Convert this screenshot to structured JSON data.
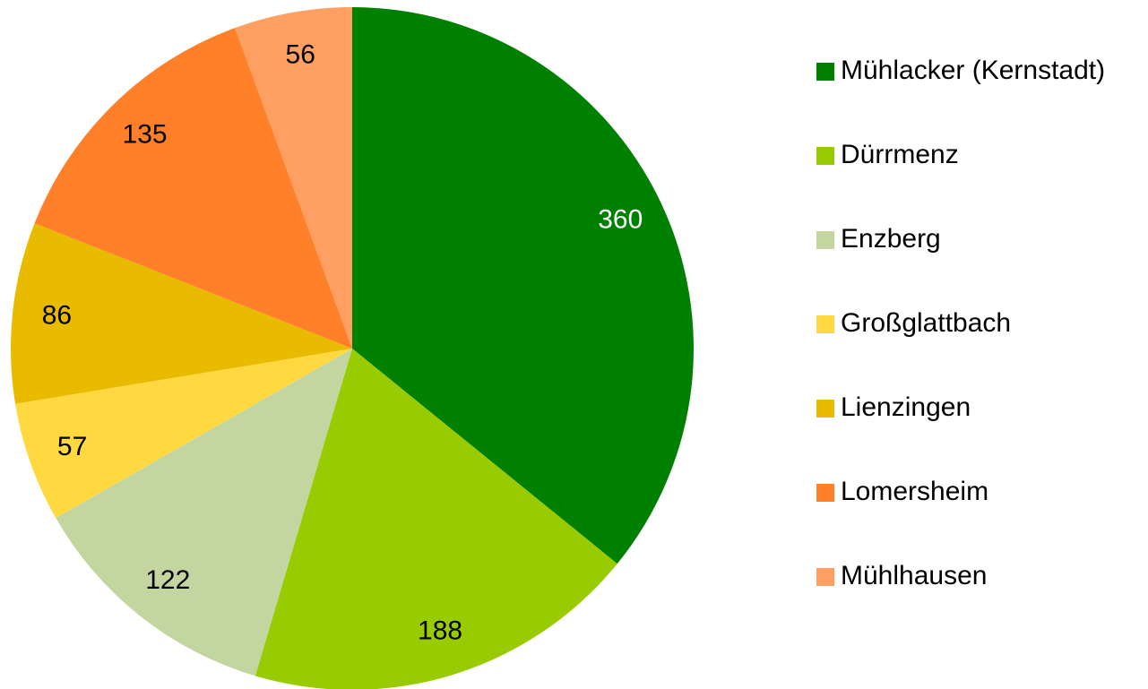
{
  "chart_data": {
    "type": "pie",
    "categories": [
      "Mühlacker (Kernstadt)",
      "Dürrmenz",
      "Enzberg",
      "Großglattbach",
      "Lienzingen",
      "Lomersheim",
      "Mühlhausen"
    ],
    "values": [
      360,
      188,
      122,
      57,
      86,
      135,
      56
    ],
    "colors": [
      "#008000",
      "#99cc00",
      "#c4d6a0",
      "#ffd93f",
      "#e9bb00",
      "#ff8028",
      "#ffa062"
    ],
    "label_colors": [
      "#ffffff",
      "#000000",
      "#000000",
      "#000000",
      "#000000",
      "#000000",
      "#000000"
    ],
    "legend": "right"
  }
}
